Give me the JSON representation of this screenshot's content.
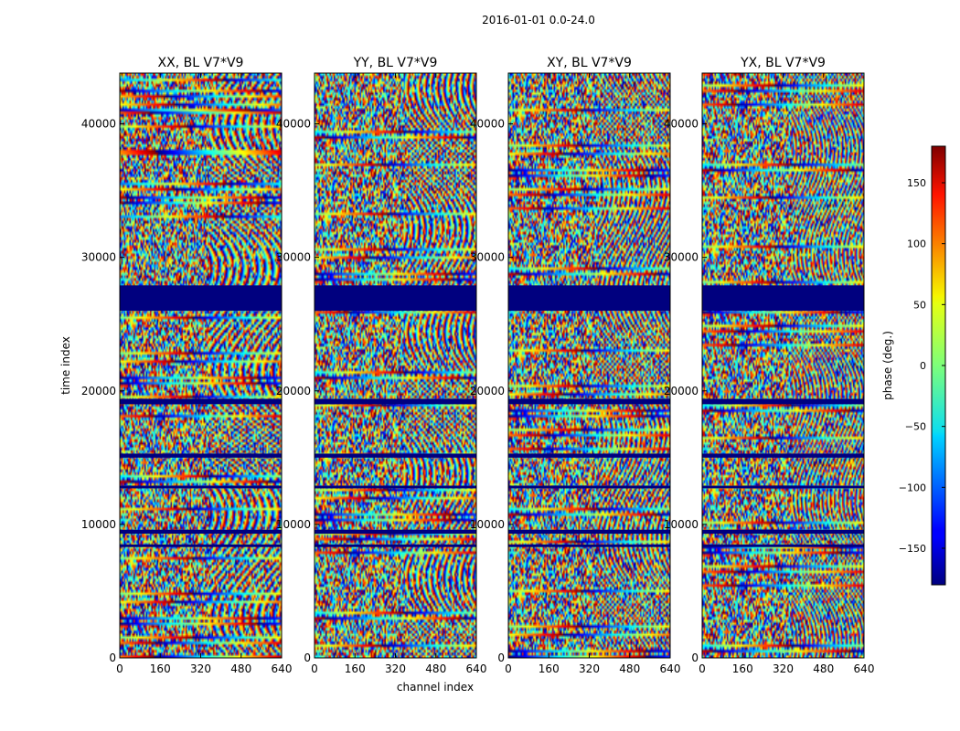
{
  "chart_data": {
    "type": "heatmap",
    "suptitle": "2016-01-01 0.0-24.0",
    "xlabel": "channel index",
    "ylabel": "time index",
    "xlim": [
      0,
      640
    ],
    "ylim": [
      0,
      43800
    ],
    "xticks": [
      0,
      160,
      320,
      480,
      640
    ],
    "yticks": [
      0,
      10000,
      20000,
      30000,
      40000
    ],
    "panels": [
      {
        "title": "XX, BL V7*V9",
        "pol": "XX"
      },
      {
        "title": "YY, BL V7*V9",
        "pol": "YY"
      },
      {
        "title": "XY, BL V7*V9",
        "pol": "XY"
      },
      {
        "title": "YX, BL V7*V9",
        "pol": "YX"
      }
    ],
    "flagged_rows": [
      [
        26000,
        27900
      ],
      [
        19000,
        19400
      ],
      [
        15000,
        15300
      ],
      [
        12700,
        12900
      ],
      [
        9300,
        9600
      ],
      [
        8300,
        8500
      ]
    ],
    "colorbar": {
      "label": "phase (deg.)",
      "range": [
        -180,
        180
      ],
      "ticks": [
        150,
        100,
        50,
        0,
        -50,
        -100,
        -150
      ],
      "ticklabels": [
        "150",
        "100",
        "50",
        "0",
        "−50",
        "−100",
        "−150"
      ],
      "colormap": "jet"
    }
  }
}
